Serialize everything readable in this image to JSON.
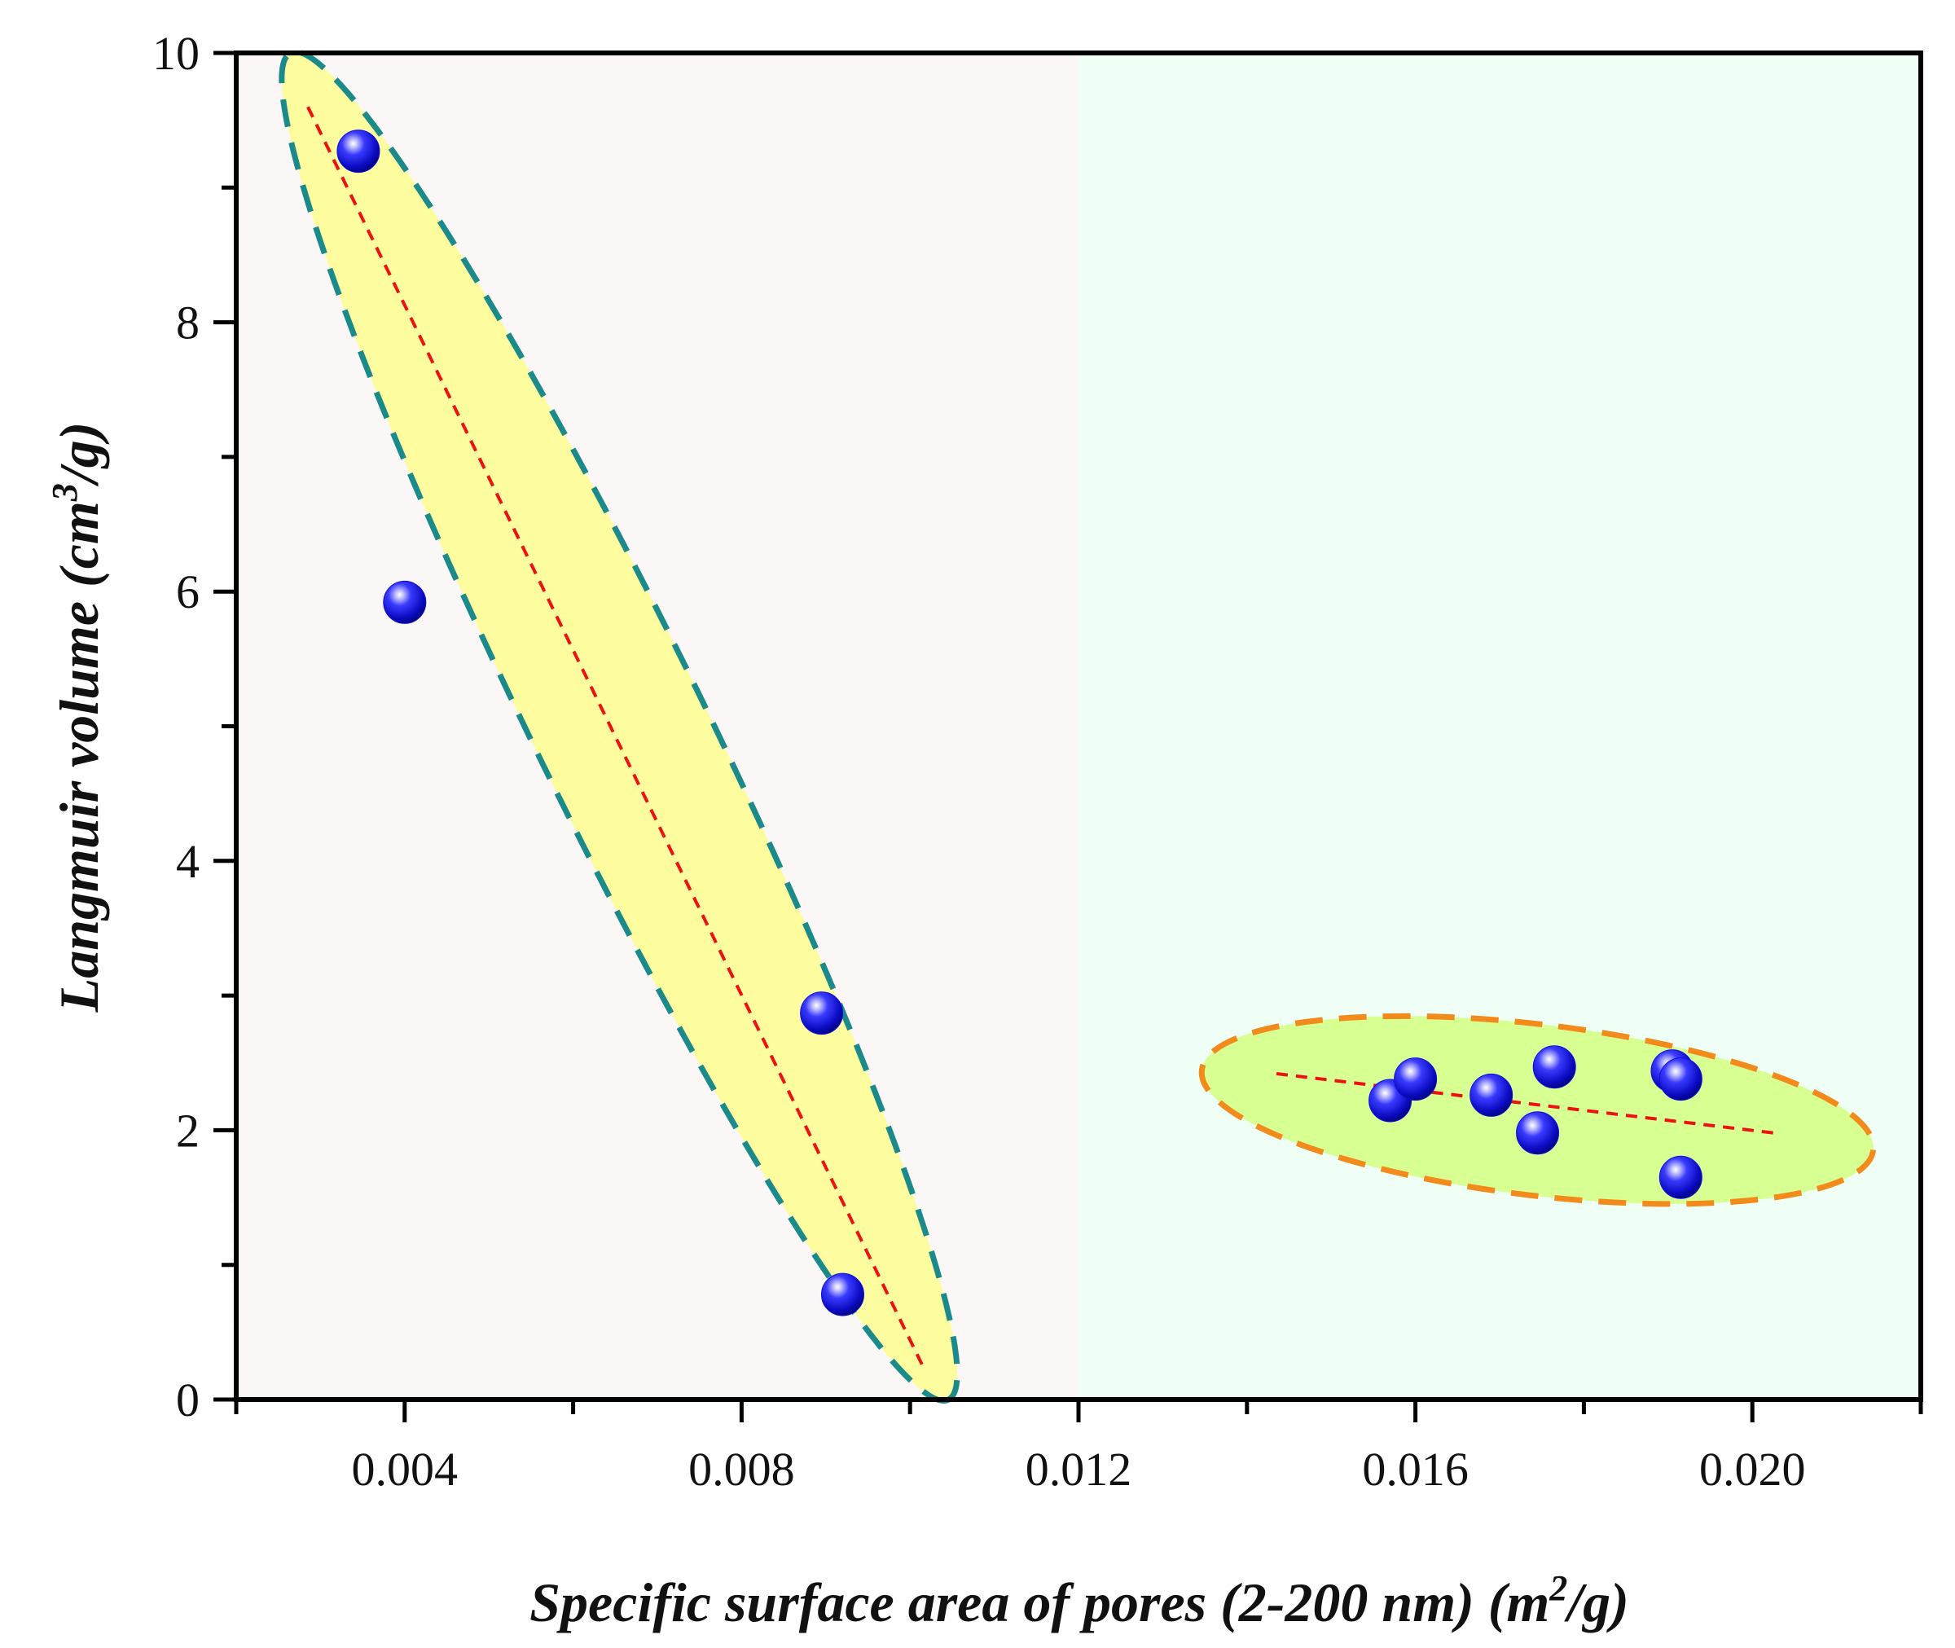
{
  "chart_data": {
    "type": "scatter",
    "xlabel": {
      "pre": "Specific surface area of pores (2-200 nm) (m",
      "sup": "2",
      "post": "/g)"
    },
    "ylabel": {
      "pre": "Langmuir volume (cm",
      "sup": "3",
      "post": "/g)"
    },
    "xlim": [
      0.002,
      0.022
    ],
    "ylim": [
      0,
      10
    ],
    "xticks": [
      0.004,
      0.008,
      0.012,
      0.016,
      0.02
    ],
    "xtick_labels": [
      "0.004",
      "0.008",
      "0.012",
      "0.016",
      "0.020"
    ],
    "yticks": [
      0,
      2,
      4,
      6,
      8,
      10
    ],
    "ytick_labels": [
      "0",
      "2",
      "4",
      "6",
      "8",
      "10"
    ],
    "background_regions": [
      {
        "x_range": [
          0.002,
          0.012
        ],
        "color": "#fcf7f7"
      },
      {
        "x_range": [
          0.012,
          0.022
        ],
        "color": "#f0fff6"
      }
    ],
    "groups": [
      {
        "points": [
          {
            "x": 0.00345,
            "y": 9.27
          },
          {
            "x": 0.004,
            "y": 5.92
          },
          {
            "x": 0.00895,
            "y": 2.87
          },
          {
            "x": 0.0092,
            "y": 0.78
          }
        ],
        "trendline": {
          "from": [
            0.00285,
            9.6
          ],
          "to": [
            0.01015,
            0.25
          ]
        },
        "ellipse": {
          "center": [
            0.00655,
            5.0
          ],
          "rx": 0.0045,
          "ry": 5.2,
          "fill": "#fdfda0",
          "stroke": "#1a8a8a"
        }
      },
      {
        "points": [
          {
            "x": 0.0157,
            "y": 2.22
          },
          {
            "x": 0.016,
            "y": 2.38
          },
          {
            "x": 0.0169,
            "y": 2.26
          },
          {
            "x": 0.01745,
            "y": 1.98
          },
          {
            "x": 0.01765,
            "y": 2.47
          },
          {
            "x": 0.01905,
            "y": 2.44
          },
          {
            "x": 0.01915,
            "y": 2.38
          },
          {
            "x": 0.01915,
            "y": 1.65
          }
        ],
        "trendline": {
          "from": [
            0.01435,
            2.42
          ],
          "to": [
            0.02025,
            1.98
          ]
        },
        "ellipse": {
          "center": [
            0.01745,
            2.15
          ],
          "rx": 0.00362,
          "ry": 0.78,
          "fill": "#d8ff92",
          "stroke": "#f28a1c"
        }
      }
    ],
    "marker_color": "#1010dd",
    "trendline_color": "#ee1111",
    "grid": false
  }
}
